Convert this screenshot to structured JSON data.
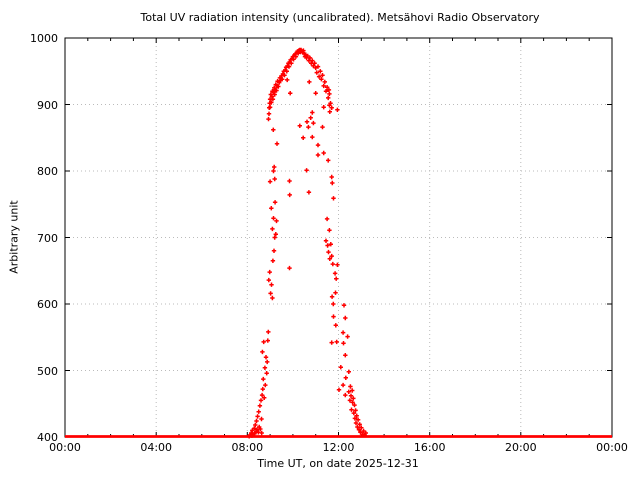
{
  "chart_data": {
    "type": "scatter",
    "title": "Total UV radiation intensity (uncalibrated). Metsähovi Radio Observatory",
    "xlabel": "Time UT, on date 2025-12-31",
    "ylabel": "Arbitrary unit",
    "x_unit": "hours UT",
    "xlim": [
      0,
      24
    ],
    "ylim": [
      400,
      1000
    ],
    "x_major_ticks_hours": [
      0,
      4,
      8,
      12,
      16,
      20,
      24
    ],
    "x_tick_labels": [
      "00:00",
      "04:00",
      "08:00",
      "12:00",
      "16:00",
      "20:00",
      "00:00"
    ],
    "x_minor_tick_interval_hours": 1,
    "y_ticks": [
      400,
      500,
      600,
      700,
      800,
      900,
      1000
    ],
    "grid": "dotted lines at major ticks",
    "legend_position": "none",
    "marker": "plus",
    "point_color": "#ff0000",
    "grid_color": "#bbbbbb",
    "axis_color": "#000000",
    "background_color": "#ffffff",
    "baseline": {
      "value": 400,
      "from_hour": 0,
      "to_hour": 24
    },
    "points": [
      [
        8.08,
        401
      ],
      [
        8.12,
        403
      ],
      [
        8.17,
        406
      ],
      [
        8.2,
        402
      ],
      [
        8.22,
        410
      ],
      [
        8.26,
        404
      ],
      [
        8.3,
        413
      ],
      [
        8.32,
        405
      ],
      [
        8.35,
        418
      ],
      [
        8.38,
        408
      ],
      [
        8.4,
        424
      ],
      [
        8.43,
        411
      ],
      [
        8.45,
        431
      ],
      [
        8.48,
        407
      ],
      [
        8.5,
        438
      ],
      [
        8.52,
        415
      ],
      [
        8.55,
        447
      ],
      [
        8.57,
        412
      ],
      [
        8.6,
        455
      ],
      [
        8.62,
        427
      ],
      [
        8.63,
        406
      ],
      [
        8.65,
        463
      ],
      [
        8.66,
        528
      ],
      [
        8.68,
        472
      ],
      [
        8.7,
        487
      ],
      [
        8.72,
        543
      ],
      [
        8.74,
        459
      ],
      [
        8.77,
        504
      ],
      [
        8.79,
        478
      ],
      [
        8.82,
        520
      ],
      [
        8.85,
        496
      ],
      [
        8.87,
        513
      ],
      [
        8.9,
        545
      ],
      [
        8.92,
        558
      ],
      [
        8.94,
        636
      ],
      [
        8.98,
        648
      ],
      [
        9.0,
        784
      ],
      [
        9.02,
        616
      ],
      [
        9.05,
        744
      ],
      [
        9.06,
        629
      ],
      [
        9.1,
        609
      ],
      [
        9.1,
        713
      ],
      [
        9.12,
        665
      ],
      [
        9.14,
        862
      ],
      [
        9.15,
        729
      ],
      [
        9.15,
        800
      ],
      [
        9.17,
        680
      ],
      [
        9.18,
        806
      ],
      [
        9.2,
        700
      ],
      [
        9.2,
        788
      ],
      [
        9.22,
        753
      ],
      [
        9.25,
        705
      ],
      [
        9.28,
        725
      ],
      [
        9.3,
        841
      ],
      [
        8.93,
        878
      ],
      [
        8.95,
        886
      ],
      [
        8.96,
        895
      ],
      [
        8.98,
        902
      ],
      [
        9.0,
        896
      ],
      [
        9.0,
        908
      ],
      [
        9.03,
        915
      ],
      [
        9.05,
        903
      ],
      [
        9.08,
        912
      ],
      [
        9.1,
        920
      ],
      [
        9.12,
        908
      ],
      [
        9.15,
        918
      ],
      [
        9.18,
        925
      ],
      [
        9.2,
        915
      ],
      [
        9.22,
        922
      ],
      [
        9.25,
        930
      ],
      [
        9.28,
        921
      ],
      [
        9.3,
        928
      ],
      [
        9.33,
        935
      ],
      [
        9.36,
        927
      ],
      [
        9.4,
        933
      ],
      [
        9.43,
        940
      ],
      [
        9.46,
        936
      ],
      [
        9.5,
        943
      ],
      [
        9.53,
        938
      ],
      [
        9.56,
        946
      ],
      [
        9.6,
        950
      ],
      [
        9.63,
        944
      ],
      [
        9.66,
        952
      ],
      [
        9.7,
        956
      ],
      [
        9.73,
        950
      ],
      [
        9.76,
        958
      ],
      [
        9.8,
        962
      ],
      [
        9.83,
        957
      ],
      [
        9.86,
        964
      ],
      [
        9.9,
        967
      ],
      [
        9.93,
        962
      ],
      [
        9.96,
        969
      ],
      [
        10.0,
        972
      ],
      [
        10.03,
        968
      ],
      [
        10.06,
        974
      ],
      [
        10.1,
        976
      ],
      [
        10.13,
        972
      ],
      [
        10.16,
        978
      ],
      [
        10.2,
        980
      ],
      [
        10.23,
        977
      ],
      [
        10.26,
        981
      ],
      [
        10.3,
        982
      ],
      [
        10.33,
        979
      ],
      [
        10.36,
        982
      ],
      [
        10.4,
        980
      ],
      [
        10.43,
        978
      ],
      [
        10.46,
        981
      ],
      [
        10.5,
        976
      ],
      [
        10.53,
        972
      ],
      [
        10.56,
        975
      ],
      [
        10.6,
        970
      ],
      [
        10.65,
        973
      ],
      [
        10.7,
        966
      ],
      [
        10.75,
        970
      ],
      [
        10.8,
        962
      ],
      [
        10.85,
        966
      ],
      [
        10.9,
        958
      ],
      [
        10.95,
        962
      ],
      [
        11.0,
        955
      ],
      [
        11.05,
        948
      ],
      [
        11.1,
        957
      ],
      [
        11.15,
        942
      ],
      [
        11.2,
        950
      ],
      [
        11.25,
        938
      ],
      [
        11.3,
        944
      ],
      [
        11.35,
        928
      ],
      [
        11.4,
        934
      ],
      [
        11.45,
        920
      ],
      [
        11.5,
        926
      ],
      [
        11.55,
        910
      ],
      [
        11.6,
        916
      ],
      [
        11.65,
        902
      ],
      [
        11.7,
        895
      ],
      [
        9.75,
        937
      ],
      [
        9.88,
        917
      ],
      [
        9.85,
        785
      ],
      [
        9.86,
        764
      ],
      [
        9.85,
        654
      ],
      [
        10.3,
        868
      ],
      [
        10.45,
        850
      ],
      [
        10.6,
        801
      ],
      [
        10.7,
        768
      ],
      [
        10.62,
        874
      ],
      [
        10.68,
        866
      ],
      [
        10.72,
        934
      ],
      [
        10.78,
        880
      ],
      [
        10.85,
        888
      ],
      [
        10.85,
        851
      ],
      [
        10.9,
        872
      ],
      [
        11.0,
        917
      ],
      [
        11.1,
        839
      ],
      [
        11.3,
        866
      ],
      [
        11.35,
        896
      ],
      [
        11.58,
        922
      ],
      [
        11.6,
        899
      ],
      [
        11.62,
        889
      ],
      [
        11.1,
        824
      ],
      [
        11.35,
        827
      ],
      [
        11.55,
        816
      ],
      [
        11.7,
        791
      ],
      [
        11.73,
        782
      ],
      [
        11.78,
        759
      ],
      [
        11.5,
        728
      ],
      [
        11.6,
        711
      ],
      [
        11.45,
        695
      ],
      [
        11.52,
        688
      ],
      [
        11.56,
        678
      ],
      [
        11.62,
        668
      ],
      [
        11.66,
        690
      ],
      [
        11.7,
        672
      ],
      [
        11.75,
        660
      ],
      [
        11.95,
        659
      ],
      [
        11.85,
        646
      ],
      [
        11.9,
        638
      ],
      [
        11.95,
        892
      ],
      [
        11.87,
        617
      ],
      [
        11.72,
        611
      ],
      [
        11.77,
        600
      ],
      [
        12.24,
        598
      ],
      [
        11.78,
        581
      ],
      [
        12.3,
        579
      ],
      [
        11.88,
        568
      ],
      [
        12.2,
        557
      ],
      [
        12.4,
        551
      ],
      [
        11.7,
        542
      ],
      [
        11.92,
        543
      ],
      [
        12.22,
        541
      ],
      [
        12.3,
        523
      ],
      [
        12.1,
        505
      ],
      [
        12.45,
        498
      ],
      [
        12.32,
        489
      ],
      [
        12.2,
        478
      ],
      [
        12.02,
        471
      ],
      [
        12.3,
        463
      ],
      [
        12.45,
        468
      ],
      [
        12.5,
        455
      ],
      [
        12.52,
        476
      ],
      [
        12.55,
        462
      ],
      [
        12.57,
        441
      ],
      [
        12.6,
        470
      ],
      [
        12.62,
        452
      ],
      [
        12.65,
        458
      ],
      [
        12.67,
        436
      ],
      [
        12.7,
        448
      ],
      [
        12.72,
        428
      ],
      [
        12.75,
        440
      ],
      [
        12.77,
        421
      ],
      [
        12.8,
        432
      ],
      [
        12.83,
        415
      ],
      [
        12.86,
        426
      ],
      [
        12.9,
        411
      ],
      [
        12.93,
        419
      ],
      [
        12.96,
        407
      ],
      [
        13.0,
        414
      ],
      [
        13.05,
        404
      ],
      [
        13.1,
        409
      ],
      [
        13.15,
        403
      ],
      [
        13.2,
        406
      ]
    ]
  }
}
